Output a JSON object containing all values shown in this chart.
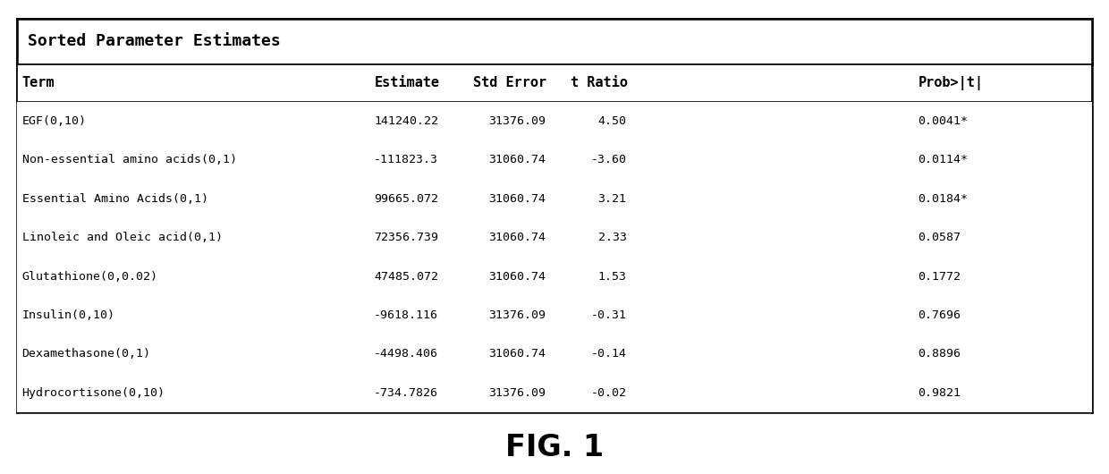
{
  "title": "Sorted Parameter Estimates",
  "fig_label": "FIG. 1",
  "rows": [
    {
      "term": "EGF(0,10)",
      "estimate": "141240.22",
      "std_error": "31376.09",
      "t_ratio": "4.50",
      "t_val": 4.5,
      "prob": "0.0041*"
    },
    {
      "term": "Non-essential amino acids(0,1)",
      "estimate": "-111823.3",
      "std_error": "31060.74",
      "t_ratio": "-3.60",
      "t_val": -3.6,
      "prob": "0.0114*"
    },
    {
      "term": "Essential Amino Acids(0,1)",
      "estimate": "99665.072",
      "std_error": "31060.74",
      "t_ratio": "3.21",
      "t_val": 3.21,
      "prob": "0.0184*"
    },
    {
      "term": "Linoleic and Oleic acid(0,1)",
      "estimate": "72356.739",
      "std_error": "31060.74",
      "t_ratio": "2.33",
      "t_val": 2.33,
      "prob": "0.0587"
    },
    {
      "term": "Glutathione(0,0.02)",
      "estimate": "47485.072",
      "std_error": "31060.74",
      "t_ratio": "1.53",
      "t_val": 1.53,
      "prob": "0.1772"
    },
    {
      "term": "Insulin(0,10)",
      "estimate": "-9618.116",
      "std_error": "31376.09",
      "t_ratio": "-0.31",
      "t_val": -0.31,
      "prob": "0.7696"
    },
    {
      "term": "Dexamethasone(0,1)",
      "estimate": "-4498.406",
      "std_error": "31060.74",
      "t_ratio": "-0.14",
      "t_val": -0.14,
      "prob": "0.8896"
    },
    {
      "term": "Hydrocortisone(0,10)",
      "estimate": "-734.7826",
      "std_error": "31376.09",
      "t_ratio": "-0.02",
      "t_val": -0.02,
      "prob": "0.9821"
    }
  ],
  "bar_xlim": [
    -5.0,
    5.0
  ],
  "bar_ticks": [
    -4,
    -2,
    0,
    2,
    4
  ],
  "significance_threshold": 1.96,
  "background_color": "#ffffff"
}
